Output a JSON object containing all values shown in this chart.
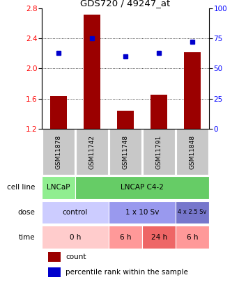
{
  "title": "GDS720 / 49247_at",
  "samples": [
    "GSM11878",
    "GSM11742",
    "GSM11748",
    "GSM11791",
    "GSM11848"
  ],
  "count_values": [
    1.63,
    2.72,
    1.44,
    1.65,
    2.22
  ],
  "percentile_values": [
    63,
    75,
    60,
    63,
    72
  ],
  "ylim_left": [
    1.2,
    2.8
  ],
  "ylim_right": [
    0,
    100
  ],
  "yticks_left": [
    1.2,
    1.6,
    2.0,
    2.4,
    2.8
  ],
  "yticks_right": [
    0,
    25,
    50,
    75,
    100
  ],
  "bar_color": "#9B0000",
  "dot_color": "#0000CC",
  "cell_line_groups": [
    {
      "label": "LNCaP",
      "start": 0,
      "end": 1,
      "color": "#90EE90"
    },
    {
      "label": "LNCAP C4-2",
      "start": 1,
      "end": 5,
      "color": "#66CC66"
    }
  ],
  "dose_groups": [
    {
      "label": "control",
      "start": 0,
      "end": 2,
      "color": "#CCCCFF"
    },
    {
      "label": "1 x 10 Sv",
      "start": 2,
      "end": 4,
      "color": "#9999EE"
    },
    {
      "label": "4 x 2.5 Sv",
      "start": 4,
      "end": 5,
      "color": "#7777CC"
    }
  ],
  "time_groups": [
    {
      "label": "0 h",
      "start": 0,
      "end": 2,
      "color": "#FFCCCC"
    },
    {
      "label": "6 h",
      "start": 2,
      "end": 3,
      "color": "#FF9999"
    },
    {
      "label": "24 h",
      "start": 3,
      "end": 4,
      "color": "#EE6666"
    },
    {
      "label": "6 h",
      "start": 4,
      "end": 5,
      "color": "#FF9999"
    }
  ],
  "row_labels": [
    "cell line",
    "dose",
    "time"
  ],
  "legend_items": [
    {
      "color": "#9B0000",
      "label": "count"
    },
    {
      "color": "#0000CC",
      "label": "percentile rank within the sample"
    }
  ],
  "label_fontsize": 7.5,
  "title_fontsize": 9.5,
  "tick_fontsize": 7.5,
  "sample_fontsize": 6.5,
  "annot_fontsize": 7.5
}
